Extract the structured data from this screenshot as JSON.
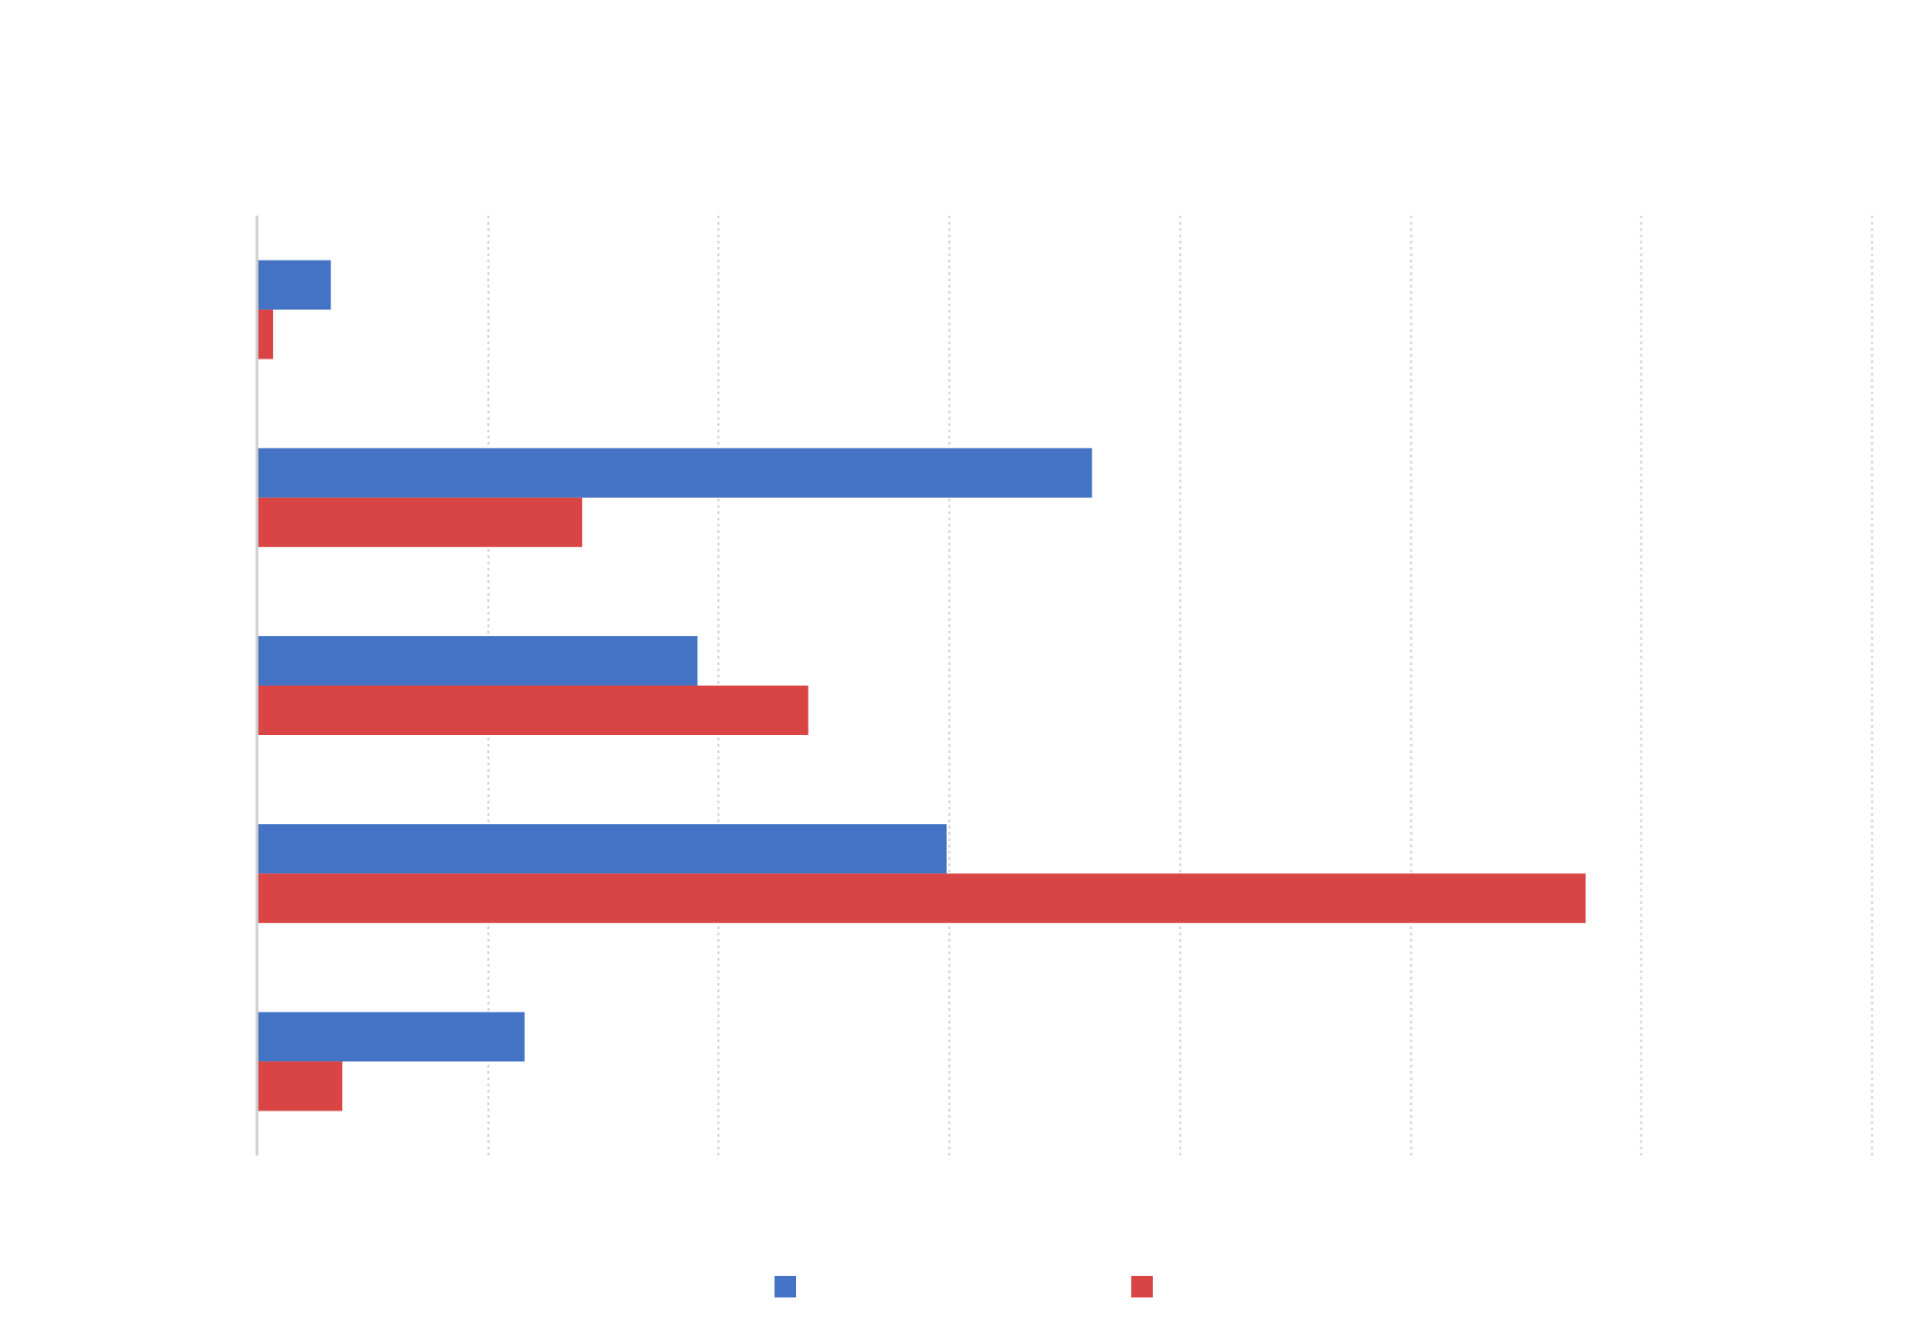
{
  "chart_data": {
    "type": "bar",
    "orientation": "horizontal",
    "title": "",
    "xlabel": "",
    "ylabel": "",
    "xlim": [
      0,
      7
    ],
    "x_gridlines": [
      0,
      1,
      2,
      3,
      4,
      5,
      6,
      7
    ],
    "grid": true,
    "categories": [
      "",
      "",
      "",
      "",
      ""
    ],
    "series": [
      {
        "name": "",
        "color": "#4472c4",
        "values": [
          0.32,
          3.62,
          1.91,
          2.99,
          1.16
        ]
      },
      {
        "name": "",
        "color": "#d94545",
        "values": [
          0.07,
          1.41,
          2.39,
          5.76,
          0.37
        ]
      }
    ],
    "legend": {
      "position": "bottom-center"
    }
  }
}
